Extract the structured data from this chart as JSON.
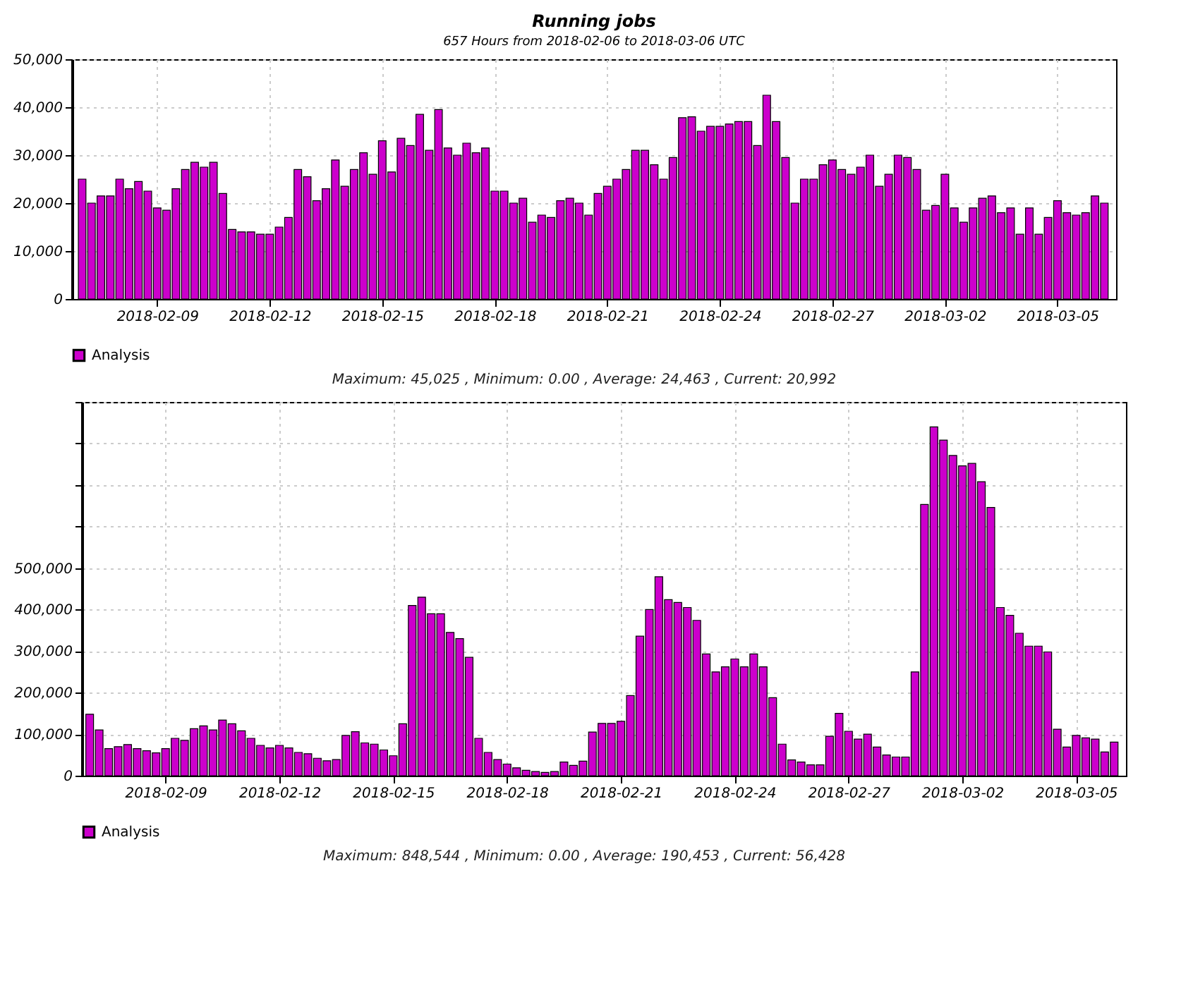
{
  "chart_data": [
    {
      "type": "bar",
      "title": "Running jobs",
      "subtitle": "657 Hours from 2018-02-06 to 2018-03-06 UTC",
      "annotations": [
        "Maximum: 45,025 , Minimum: 0.00 , Average: 24,463 , Current: 20,992"
      ],
      "x": [
        "2018-02-07T00:00",
        "2018-02-07T06:00",
        "2018-02-07T12:00",
        "2018-02-07T18:00",
        "2018-02-08T00:00",
        "2018-02-08T06:00",
        "2018-02-08T12:00",
        "2018-02-08T18:00",
        "2018-02-09T00:00",
        "2018-02-09T06:00",
        "2018-02-09T12:00",
        "2018-02-09T18:00",
        "2018-02-10T00:00",
        "2018-02-10T06:00",
        "2018-02-10T12:00",
        "2018-02-10T18:00",
        "2018-02-11T00:00",
        "2018-02-11T06:00",
        "2018-02-11T12:00",
        "2018-02-11T18:00",
        "2018-02-12T00:00",
        "2018-02-12T06:00",
        "2018-02-12T12:00",
        "2018-02-12T18:00",
        "2018-02-13T00:00",
        "2018-02-13T06:00",
        "2018-02-13T12:00",
        "2018-02-13T18:00",
        "2018-02-14T00:00",
        "2018-02-14T06:00",
        "2018-02-14T12:00",
        "2018-02-14T18:00",
        "2018-02-15T00:00",
        "2018-02-15T06:00",
        "2018-02-15T12:00",
        "2018-02-15T18:00",
        "2018-02-16T00:00",
        "2018-02-16T06:00",
        "2018-02-16T12:00",
        "2018-02-16T18:00",
        "2018-02-17T00:00",
        "2018-02-17T06:00",
        "2018-02-17T12:00",
        "2018-02-17T18:00",
        "2018-02-18T00:00",
        "2018-02-18T06:00",
        "2018-02-18T12:00",
        "2018-02-18T18:00",
        "2018-02-19T00:00",
        "2018-02-19T06:00",
        "2018-02-19T12:00",
        "2018-02-19T18:00",
        "2018-02-20T00:00",
        "2018-02-20T06:00",
        "2018-02-20T12:00",
        "2018-02-20T18:00",
        "2018-02-21T00:00",
        "2018-02-21T06:00",
        "2018-02-21T12:00",
        "2018-02-21T18:00",
        "2018-02-22T00:00",
        "2018-02-22T06:00",
        "2018-02-22T12:00",
        "2018-02-22T18:00",
        "2018-02-23T00:00",
        "2018-02-23T06:00",
        "2018-02-23T12:00",
        "2018-02-23T18:00",
        "2018-02-24T00:00",
        "2018-02-24T06:00",
        "2018-02-24T12:00",
        "2018-02-24T18:00",
        "2018-02-25T00:00",
        "2018-02-25T06:00",
        "2018-02-25T12:00",
        "2018-02-25T18:00",
        "2018-02-26T00:00",
        "2018-02-26T06:00",
        "2018-02-26T12:00",
        "2018-02-26T18:00",
        "2018-02-27T00:00",
        "2018-02-27T06:00",
        "2018-02-27T12:00",
        "2018-02-27T18:00",
        "2018-02-28T00:00",
        "2018-02-28T06:00",
        "2018-02-28T12:00",
        "2018-02-28T18:00",
        "2018-03-01T00:00",
        "2018-03-01T06:00",
        "2018-03-01T12:00",
        "2018-03-01T18:00",
        "2018-03-02T00:00",
        "2018-03-02T06:00",
        "2018-03-02T12:00",
        "2018-03-02T18:00",
        "2018-03-03T00:00",
        "2018-03-03T06:00",
        "2018-03-03T12:00",
        "2018-03-03T18:00",
        "2018-03-04T00:00",
        "2018-03-04T06:00",
        "2018-03-04T12:00",
        "2018-03-04T18:00",
        "2018-03-05T00:00",
        "2018-03-05T06:00",
        "2018-03-05T12:00",
        "2018-03-05T18:00",
        "2018-03-06T00:00",
        "2018-03-06T06:00"
      ],
      "series": [
        {
          "name": "Analysis",
          "color": "#cc00cc",
          "values": [
            25000,
            20000,
            21500,
            21500,
            25000,
            23000,
            24500,
            22500,
            19000,
            18500,
            23000,
            27000,
            28500,
            27500,
            28500,
            22000,
            14500,
            14000,
            14000,
            13500,
            13500,
            15000,
            17000,
            27000,
            25500,
            20500,
            23000,
            29000,
            23500,
            27000,
            30500,
            26000,
            33000,
            26500,
            33500,
            32000,
            38500,
            31000,
            39500,
            31500,
            30000,
            32500,
            30500,
            31500,
            22500,
            22500,
            20000,
            21000,
            16000,
            17500,
            17000,
            20500,
            21000,
            20000,
            17500,
            22000,
            23500,
            25000,
            27000,
            31000,
            31000,
            28000,
            25000,
            29500,
            37800,
            38000,
            35000,
            36000,
            36000,
            36500,
            37000,
            37000,
            32000,
            42500,
            37000,
            29500,
            20000,
            25000,
            25000,
            28000,
            29000,
            27000,
            26000,
            27500,
            30000,
            23500,
            26000,
            30000,
            29500,
            27000,
            18500,
            19500,
            26000,
            19000,
            16000,
            19000,
            21000,
            21500,
            18000,
            19000,
            13500,
            19000,
            13500,
            17000,
            20500,
            18000,
            17500,
            18000,
            21500,
            20000
          ]
        }
      ],
      "xlim": [
        "2018-02-06T22:00",
        "2018-03-06T09:00"
      ],
      "xticks": [
        "2018-02-09",
        "2018-02-12",
        "2018-02-15",
        "2018-02-18",
        "2018-02-21",
        "2018-02-24",
        "2018-02-27",
        "2018-03-02",
        "2018-03-05"
      ],
      "ylim": [
        0,
        50000
      ],
      "yticks": [
        0,
        {
          "value": 10000,
          "label": "10,000"
        },
        {
          "value": 20000,
          "label": "20,000"
        },
        {
          "value": 30000,
          "label": "30,000"
        },
        {
          "value": 40000,
          "label": "40,000"
        },
        {
          "value": 50000,
          "label": "50,000"
        }
      ],
      "grid": true,
      "legend": "bottom"
    },
    {
      "type": "bar",
      "annotations": [
        "Maximum: 848,544 , Minimum: 0.00 , Average: 190,453 , Current: 56,428"
      ],
      "x": [
        "2018-02-07T00:00",
        "2018-02-07T06:00",
        "2018-02-07T12:00",
        "2018-02-07T18:00",
        "2018-02-08T00:00",
        "2018-02-08T06:00",
        "2018-02-08T12:00",
        "2018-02-08T18:00",
        "2018-02-09T00:00",
        "2018-02-09T06:00",
        "2018-02-09T12:00",
        "2018-02-09T18:00",
        "2018-02-10T00:00",
        "2018-02-10T06:00",
        "2018-02-10T12:00",
        "2018-02-10T18:00",
        "2018-02-11T00:00",
        "2018-02-11T06:00",
        "2018-02-11T12:00",
        "2018-02-11T18:00",
        "2018-02-12T00:00",
        "2018-02-12T06:00",
        "2018-02-12T12:00",
        "2018-02-12T18:00",
        "2018-02-13T00:00",
        "2018-02-13T06:00",
        "2018-02-13T12:00",
        "2018-02-13T18:00",
        "2018-02-14T00:00",
        "2018-02-14T06:00",
        "2018-02-14T12:00",
        "2018-02-14T18:00",
        "2018-02-15T00:00",
        "2018-02-15T06:00",
        "2018-02-15T12:00",
        "2018-02-15T18:00",
        "2018-02-16T00:00",
        "2018-02-16T06:00",
        "2018-02-16T12:00",
        "2018-02-16T18:00",
        "2018-02-17T00:00",
        "2018-02-17T06:00",
        "2018-02-17T12:00",
        "2018-02-17T18:00",
        "2018-02-18T00:00",
        "2018-02-18T06:00",
        "2018-02-18T12:00",
        "2018-02-18T18:00",
        "2018-02-19T00:00",
        "2018-02-19T06:00",
        "2018-02-19T12:00",
        "2018-02-19T18:00",
        "2018-02-20T00:00",
        "2018-02-20T06:00",
        "2018-02-20T12:00",
        "2018-02-20T18:00",
        "2018-02-21T00:00",
        "2018-02-21T06:00",
        "2018-02-21T12:00",
        "2018-02-21T18:00",
        "2018-02-22T00:00",
        "2018-02-22T06:00",
        "2018-02-22T12:00",
        "2018-02-22T18:00",
        "2018-02-23T00:00",
        "2018-02-23T06:00",
        "2018-02-23T12:00",
        "2018-02-23T18:00",
        "2018-02-24T00:00",
        "2018-02-24T06:00",
        "2018-02-24T12:00",
        "2018-02-24T18:00",
        "2018-02-25T00:00",
        "2018-02-25T06:00",
        "2018-02-25T12:00",
        "2018-02-25T18:00",
        "2018-02-26T00:00",
        "2018-02-26T06:00",
        "2018-02-26T12:00",
        "2018-02-26T18:00",
        "2018-02-27T00:00",
        "2018-02-27T06:00",
        "2018-02-27T12:00",
        "2018-02-27T18:00",
        "2018-02-28T00:00",
        "2018-02-28T06:00",
        "2018-02-28T12:00",
        "2018-02-28T18:00",
        "2018-03-01T00:00",
        "2018-03-01T06:00",
        "2018-03-01T12:00",
        "2018-03-01T18:00",
        "2018-03-02T00:00",
        "2018-03-02T06:00",
        "2018-03-02T12:00",
        "2018-03-02T18:00",
        "2018-03-03T00:00",
        "2018-03-03T06:00",
        "2018-03-03T12:00",
        "2018-03-03T18:00",
        "2018-03-04T00:00",
        "2018-03-04T06:00",
        "2018-03-04T12:00",
        "2018-03-04T18:00",
        "2018-03-05T00:00",
        "2018-03-05T06:00",
        "2018-03-05T12:00",
        "2018-03-05T18:00",
        "2018-03-06T00:00"
      ],
      "series": [
        {
          "name": "Analysis",
          "color": "#cc00cc",
          "values": [
            148000,
            110000,
            65000,
            70000,
            75000,
            65000,
            60000,
            55000,
            65000,
            90000,
            85000,
            113000,
            120000,
            110000,
            134000,
            125000,
            108000,
            90000,
            73000,
            67000,
            73000,
            67000,
            56000,
            53000,
            42000,
            36000,
            39000,
            97000,
            106000,
            79000,
            76000,
            62000,
            48000,
            125000,
            410000,
            430000,
            390000,
            390000,
            345000,
            330000,
            285000,
            90000,
            56000,
            39000,
            28000,
            19000,
            13000,
            10000,
            8000,
            10000,
            33000,
            25000,
            35000,
            105000,
            126000,
            126000,
            131000,
            193000,
            336000,
            400000,
            479000,
            424000,
            417000,
            405000,
            374000,
            293000,
            250000,
            262000,
            281000,
            262000,
            293000,
            262000,
            188000,
            76000,
            38000,
            33000,
            26000,
            26000,
            95000,
            150000,
            107000,
            88000,
            100000,
            69000,
            50000,
            45000,
            45000,
            250000,
            653000,
            840000,
            808000,
            771000,
            746000,
            752000,
            708000,
            646000,
            405000,
            386000,
            343000,
            312000,
            312000,
            298000,
            112000,
            69000,
            97000,
            91000,
            88000,
            57000,
            81000
          ]
        }
      ],
      "xlim": [
        "2018-02-06T23:30",
        "2018-03-06T03:00"
      ],
      "xticks": [
        "2018-02-09",
        "2018-02-12",
        "2018-02-15",
        "2018-02-18",
        "2018-02-21",
        "2018-02-24",
        "2018-02-27",
        "2018-03-02",
        "2018-03-05"
      ],
      "ylim": [
        0,
        900000
      ],
      "yticks": [
        0,
        {
          "value": 100000,
          "label": "100,000"
        },
        {
          "value": 200000,
          "label": "200,000"
        },
        {
          "value": 300000,
          "label": "300,000"
        },
        {
          "value": 400000,
          "label": "400,000"
        },
        {
          "value": 500000,
          "label": "500,000"
        },
        {
          "value": 600000,
          "label": null
        },
        {
          "value": 700000,
          "label": null
        },
        {
          "value": 800000,
          "label": null
        },
        {
          "value": 900000,
          "label": null
        }
      ],
      "grid": true,
      "legend": "bottom"
    }
  ]
}
